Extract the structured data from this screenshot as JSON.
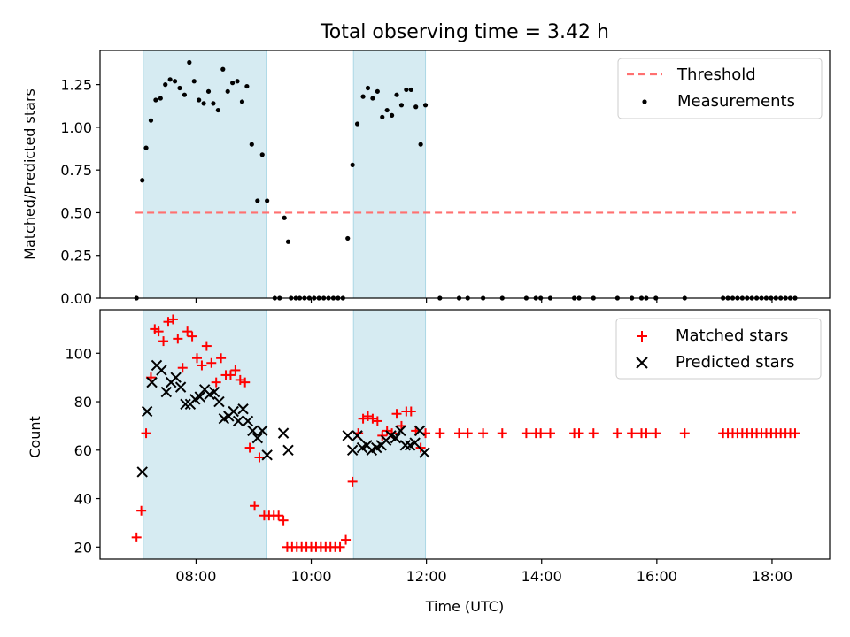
{
  "figure": {
    "title": "Total observing time = 3.42 h"
  },
  "chart_data": [
    {
      "type": "scatter",
      "title": "Total observing time = 3.42 h",
      "xlabel": "",
      "ylabel": "Matched/Predicted stars",
      "ylim": [
        0.0,
        1.45
      ],
      "yticks": [
        0.0,
        0.25,
        0.5,
        0.75,
        1.0,
        1.25
      ],
      "ytick_labels": [
        "0.00",
        "0.25",
        "0.50",
        "0.75",
        "1.00",
        "1.25"
      ],
      "xlim": [
        "06:20",
        "19:00"
      ],
      "shaded_intervals": [
        [
          "07:05",
          "09:13"
        ],
        [
          "10:44",
          "11:59"
        ]
      ],
      "legend_position": "upper right",
      "threshold": {
        "name": "Threshold",
        "value": 0.5,
        "x_range": [
          "06:57",
          "18:25"
        ],
        "color": "#ff7070"
      },
      "series": [
        {
          "name": "Measurements",
          "color": "#000000",
          "points": [
            [
              "06:58",
              0.0
            ],
            [
              "07:04",
              0.69
            ],
            [
              "07:08",
              0.88
            ],
            [
              "07:13",
              1.04
            ],
            [
              "07:18",
              1.16
            ],
            [
              "07:23",
              1.17
            ],
            [
              "07:28",
              1.25
            ],
            [
              "07:33",
              1.28
            ],
            [
              "07:38",
              1.27
            ],
            [
              "07:43",
              1.23
            ],
            [
              "07:48",
              1.19
            ],
            [
              "07:53",
              1.38
            ],
            [
              "07:58",
              1.27
            ],
            [
              "08:03",
              1.16
            ],
            [
              "08:08",
              1.14
            ],
            [
              "08:13",
              1.21
            ],
            [
              "08:18",
              1.14
            ],
            [
              "08:23",
              1.1
            ],
            [
              "08:28",
              1.34
            ],
            [
              "08:33",
              1.21
            ],
            [
              "08:38",
              1.26
            ],
            [
              "08:43",
              1.27
            ],
            [
              "08:48",
              1.15
            ],
            [
              "08:53",
              1.24
            ],
            [
              "08:58",
              0.9
            ],
            [
              "09:04",
              0.57
            ],
            [
              "09:09",
              0.84
            ],
            [
              "09:14",
              0.57
            ],
            [
              "09:22",
              0.0
            ],
            [
              "09:27",
              0.0
            ],
            [
              "09:32",
              0.47
            ],
            [
              "09:36",
              0.33
            ],
            [
              "09:39",
              0.0
            ],
            [
              "09:44",
              0.0
            ],
            [
              "09:48",
              0.0
            ],
            [
              "09:53",
              0.0
            ],
            [
              "09:58",
              0.0
            ],
            [
              "10:03",
              0.0
            ],
            [
              "10:08",
              0.0
            ],
            [
              "10:13",
              0.0
            ],
            [
              "10:18",
              0.0
            ],
            [
              "10:23",
              0.0
            ],
            [
              "10:28",
              0.0
            ],
            [
              "10:33",
              0.0
            ],
            [
              "10:38",
              0.35
            ],
            [
              "10:43",
              0.78
            ],
            [
              "10:48",
              1.02
            ],
            [
              "10:54",
              1.18
            ],
            [
              "10:59",
              1.23
            ],
            [
              "11:04",
              1.17
            ],
            [
              "11:09",
              1.21
            ],
            [
              "11:14",
              1.06
            ],
            [
              "11:19",
              1.1
            ],
            [
              "11:24",
              1.07
            ],
            [
              "11:29",
              1.19
            ],
            [
              "11:34",
              1.13
            ],
            [
              "11:39",
              1.22
            ],
            [
              "11:44",
              1.22
            ],
            [
              "11:49",
              1.12
            ],
            [
              "11:54",
              0.9
            ],
            [
              "11:59",
              1.13
            ],
            [
              "12:14",
              0.0
            ],
            [
              "12:34",
              0.0
            ],
            [
              "12:43",
              0.0
            ],
            [
              "12:59",
              0.0
            ],
            [
              "13:19",
              0.0
            ],
            [
              "13:44",
              0.0
            ],
            [
              "13:54",
              0.0
            ],
            [
              "13:59",
              0.0
            ],
            [
              "14:09",
              0.0
            ],
            [
              "14:34",
              0.0
            ],
            [
              "14:39",
              0.0
            ],
            [
              "14:54",
              0.0
            ],
            [
              "15:19",
              0.0
            ],
            [
              "15:34",
              0.0
            ],
            [
              "15:44",
              0.0
            ],
            [
              "15:49",
              0.0
            ],
            [
              "15:59",
              0.0
            ],
            [
              "16:29",
              0.0
            ],
            [
              "17:09",
              0.0
            ],
            [
              "17:14",
              0.0
            ],
            [
              "17:19",
              0.0
            ],
            [
              "17:24",
              0.0
            ],
            [
              "17:29",
              0.0
            ],
            [
              "17:34",
              0.0
            ],
            [
              "17:39",
              0.0
            ],
            [
              "17:44",
              0.0
            ],
            [
              "17:49",
              0.0
            ],
            [
              "17:54",
              0.0
            ],
            [
              "17:59",
              0.0
            ],
            [
              "18:04",
              0.0
            ],
            [
              "18:09",
              0.0
            ],
            [
              "18:14",
              0.0
            ],
            [
              "18:19",
              0.0
            ],
            [
              "18:24",
              0.0
            ]
          ]
        }
      ]
    },
    {
      "type": "scatter",
      "title": "",
      "xlabel": "Time (UTC)",
      "ylabel": "Count",
      "ylim": [
        15,
        118
      ],
      "yticks": [
        20,
        40,
        60,
        80,
        100
      ],
      "ytick_labels": [
        "20",
        "40",
        "60",
        "80",
        "100"
      ],
      "xlim": [
        "06:20",
        "19:00"
      ],
      "xticks": [
        "08:00",
        "10:00",
        "12:00",
        "14:00",
        "16:00",
        "18:00"
      ],
      "xtick_labels": [
        "08:00",
        "10:00",
        "12:00",
        "14:00",
        "16:00",
        "18:00"
      ],
      "shaded_intervals": [
        [
          "07:05",
          "09:13"
        ],
        [
          "10:44",
          "11:59"
        ]
      ],
      "legend_position": "upper right",
      "series": [
        {
          "name": "Matched stars",
          "marker": "+",
          "color": "#ff0000",
          "points": [
            [
              "06:58",
              24
            ],
            [
              "07:03",
              35
            ],
            [
              "07:08",
              67
            ],
            [
              "07:13",
              90
            ],
            [
              "07:17",
              110
            ],
            [
              "07:21",
              109
            ],
            [
              "07:26",
              105
            ],
            [
              "07:31",
              113
            ],
            [
              "07:36",
              114
            ],
            [
              "07:41",
              106
            ],
            [
              "07:46",
              94
            ],
            [
              "07:51",
              109
            ],
            [
              "07:56",
              107
            ],
            [
              "08:01",
              98
            ],
            [
              "08:06",
              95
            ],
            [
              "08:11",
              103
            ],
            [
              "08:16",
              96
            ],
            [
              "08:21",
              88
            ],
            [
              "08:26",
              98
            ],
            [
              "08:31",
              91
            ],
            [
              "08:36",
              91
            ],
            [
              "08:41",
              93
            ],
            [
              "08:46",
              89
            ],
            [
              "08:51",
              88
            ],
            [
              "08:56",
              61
            ],
            [
              "09:01",
              37
            ],
            [
              "09:06",
              57
            ],
            [
              "09:11",
              33
            ],
            [
              "09:16",
              33
            ],
            [
              "09:21",
              33
            ],
            [
              "09:26",
              33
            ],
            [
              "09:31",
              31
            ],
            [
              "09:35",
              20
            ],
            [
              "09:40",
              20
            ],
            [
              "09:45",
              20
            ],
            [
              "09:50",
              20
            ],
            [
              "09:55",
              20
            ],
            [
              "10:00",
              20
            ],
            [
              "10:05",
              20
            ],
            [
              "10:10",
              20
            ],
            [
              "10:15",
              20
            ],
            [
              "10:20",
              20
            ],
            [
              "10:25",
              20
            ],
            [
              "10:30",
              20
            ],
            [
              "10:36",
              23
            ],
            [
              "10:43",
              47
            ],
            [
              "10:49",
              67
            ],
            [
              "10:54",
              73
            ],
            [
              "10:59",
              74
            ],
            [
              "11:04",
              73
            ],
            [
              "11:09",
              72
            ],
            [
              "11:14",
              66
            ],
            [
              "11:19",
              68
            ],
            [
              "11:24",
              67
            ],
            [
              "11:29",
              75
            ],
            [
              "11:34",
              70
            ],
            [
              "11:39",
              76
            ],
            [
              "11:44",
              76
            ],
            [
              "11:49",
              68
            ],
            [
              "11:54",
              61
            ],
            [
              "11:59",
              67
            ],
            [
              "12:14",
              67
            ],
            [
              "12:34",
              67
            ],
            [
              "12:43",
              67
            ],
            [
              "12:59",
              67
            ],
            [
              "13:19",
              67
            ],
            [
              "13:44",
              67
            ],
            [
              "13:54",
              67
            ],
            [
              "13:59",
              67
            ],
            [
              "14:09",
              67
            ],
            [
              "14:34",
              67
            ],
            [
              "14:39",
              67
            ],
            [
              "14:54",
              67
            ],
            [
              "15:19",
              67
            ],
            [
              "15:34",
              67
            ],
            [
              "15:44",
              67
            ],
            [
              "15:49",
              67
            ],
            [
              "15:59",
              67
            ],
            [
              "16:29",
              67
            ],
            [
              "17:09",
              67
            ],
            [
              "17:14",
              67
            ],
            [
              "17:19",
              67
            ],
            [
              "17:24",
              67
            ],
            [
              "17:29",
              67
            ],
            [
              "17:34",
              67
            ],
            [
              "17:39",
              67
            ],
            [
              "17:44",
              67
            ],
            [
              "17:49",
              67
            ],
            [
              "17:54",
              67
            ],
            [
              "17:59",
              67
            ],
            [
              "18:04",
              67
            ],
            [
              "18:09",
              67
            ],
            [
              "18:14",
              67
            ],
            [
              "18:19",
              67
            ],
            [
              "18:24",
              67
            ]
          ]
        },
        {
          "name": "Predicted stars",
          "marker": "x",
          "color": "#000000",
          "points": [
            [
              "07:04",
              51
            ],
            [
              "07:09",
              76
            ],
            [
              "07:14",
              88
            ],
            [
              "07:19",
              95
            ],
            [
              "07:24",
              93
            ],
            [
              "07:29",
              84
            ],
            [
              "07:34",
              88
            ],
            [
              "07:39",
              90
            ],
            [
              "07:44",
              86
            ],
            [
              "07:49",
              79
            ],
            [
              "07:54",
              79
            ],
            [
              "07:59",
              81
            ],
            [
              "08:04",
              82
            ],
            [
              "08:09",
              85
            ],
            [
              "08:14",
              83
            ],
            [
              "08:19",
              84
            ],
            [
              "08:24",
              80
            ],
            [
              "08:29",
              73
            ],
            [
              "08:34",
              74
            ],
            [
              "08:39",
              76
            ],
            [
              "08:44",
              72
            ],
            [
              "08:49",
              77
            ],
            [
              "08:54",
              72
            ],
            [
              "08:59",
              68
            ],
            [
              "09:04",
              65
            ],
            [
              "09:09",
              68
            ],
            [
              "09:14",
              58
            ],
            [
              "09:31",
              67
            ],
            [
              "09:36",
              60
            ],
            [
              "10:38",
              66
            ],
            [
              "10:43",
              60
            ],
            [
              "10:48",
              66
            ],
            [
              "10:53",
              61
            ],
            [
              "10:58",
              62
            ],
            [
              "11:03",
              60
            ],
            [
              "11:08",
              61
            ],
            [
              "11:13",
              62
            ],
            [
              "11:18",
              64
            ],
            [
              "11:23",
              66
            ],
            [
              "11:28",
              65
            ],
            [
              "11:33",
              68
            ],
            [
              "11:38",
              62
            ],
            [
              "11:43",
              62
            ],
            [
              "11:48",
              63
            ],
            [
              "11:53",
              68
            ],
            [
              "11:58",
              59
            ]
          ]
        }
      ]
    }
  ]
}
